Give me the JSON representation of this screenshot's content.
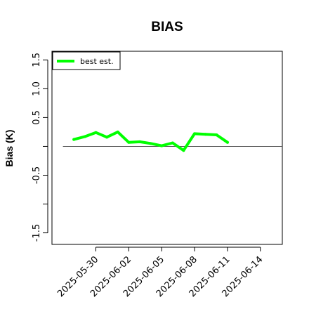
{
  "chart_data": {
    "type": "line",
    "title": "BIAS",
    "xlabel": "",
    "ylabel": "Bias (K)",
    "x": [
      "2025-05-28",
      "2025-05-29",
      "2025-05-30",
      "2025-05-31",
      "2025-06-01",
      "2025-06-02",
      "2025-06-03",
      "2025-06-04",
      "2025-06-05",
      "2025-06-06",
      "2025-06-07",
      "2025-06-08",
      "2025-06-09",
      "2025-06-10",
      "2025-06-11",
      "2025-06-12"
    ],
    "series": [
      {
        "name": "best est.",
        "color": "#00ff00",
        "values": [
          0.12,
          0.17,
          0.24,
          0.16,
          0.25,
          0.07,
          0.08,
          0.05,
          0.01,
          0.06,
          -0.07,
          0.22,
          0.21,
          0.2,
          0.07,
          null
        ]
      }
    ],
    "reference_line": {
      "y": 0.0,
      "x_start": "2025-05-27",
      "x_end": "2025-06-16",
      "color": "#555555"
    },
    "xlim": [
      "2025-05-26",
      "2025-06-16"
    ],
    "ylim": [
      -1.7,
      1.65
    ],
    "yticks": [
      -1.5,
      -1.0,
      -0.5,
      0.0,
      0.5,
      1.0,
      1.5
    ],
    "ytick_labels": [
      "-1.5",
      "",
      "-0.5",
      "",
      "0.5",
      "1.0",
      "1.5"
    ],
    "xticks": [
      "2025-05-30",
      "2025-06-02",
      "2025-06-05",
      "2025-06-08",
      "2025-06-11",
      "2025-06-14"
    ],
    "xtick_labels": [
      "2025-05-30",
      "2025-06-02",
      "2025-06-05",
      "2025-06-08",
      "2025-06-11",
      "2025-06-14"
    ],
    "grid": false,
    "legend_position": "top-left"
  }
}
